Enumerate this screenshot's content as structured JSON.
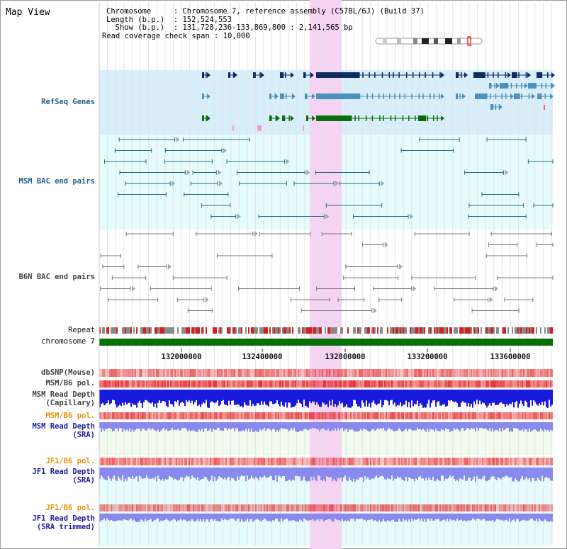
{
  "title": "Map View",
  "info": {
    "chromosome_label": "Chromosome",
    "chromosome_value": "Chromosome 7, reference assembly (C57BL/6J) (Build 37)",
    "length_label": "Length (b.p.)",
    "length_value": "152,524,553",
    "show_label": "Show (b.p.)",
    "show_value": "131,728,236-133,869,800 : 2,141,565 bp",
    "coverage_label": "Read coverage check span",
    "coverage_value": "10,000"
  },
  "tracks": {
    "refseq": "RefSeq Genes",
    "msm_bac": "MSM BAC end pairs",
    "b6n_bac": "B6N BAC end pairs",
    "repeat": "Repeat",
    "chromosome": "chromosome 7",
    "dbsnp": "dbSNP(Mouse)",
    "msm_b6_pol_1": "MSM/B6 pol.",
    "msm_depth_cap_1": "MSM Read Depth",
    "msm_depth_cap_2": "(Capillary)",
    "msm_b6_pol_2": "MSM/B6 pol.",
    "msm_depth_sra_1": "MSM Read Depth",
    "msm_depth_sra_2": "(SRA)",
    "jf1_b6_pol_1": "JF1/B6 pol.",
    "jf1_depth_sra_1": "JF1 Read Depth",
    "jf1_depth_sra_2": "(SRA)",
    "jf1_b6_pol_2": "JF1/B6 pol.",
    "jf1_depth_trim_1": "JF1 Read Depth",
    "jf1_depth_trim_2": "(SRA trimmed)"
  },
  "axis": {
    "ticks": [
      "132000000",
      "132400000",
      "132800000",
      "133200000",
      "133600000"
    ]
  },
  "colors": {
    "highlight": "#f6d2f3",
    "refseq_bg": "#d8eefa",
    "bac_bg": "#e6fbfb",
    "gene_navy": "#0e2e62",
    "gene_teal": "#4b93b8",
    "gene_green": "#0a6e0a",
    "bac_teal": "#1e6f86",
    "bac_gray": "#777777",
    "chromosome_green": "#067006",
    "snp_red": "#f09595",
    "depth_blue": "#1a1adc",
    "sra_blue": "#8a8aee"
  }
}
